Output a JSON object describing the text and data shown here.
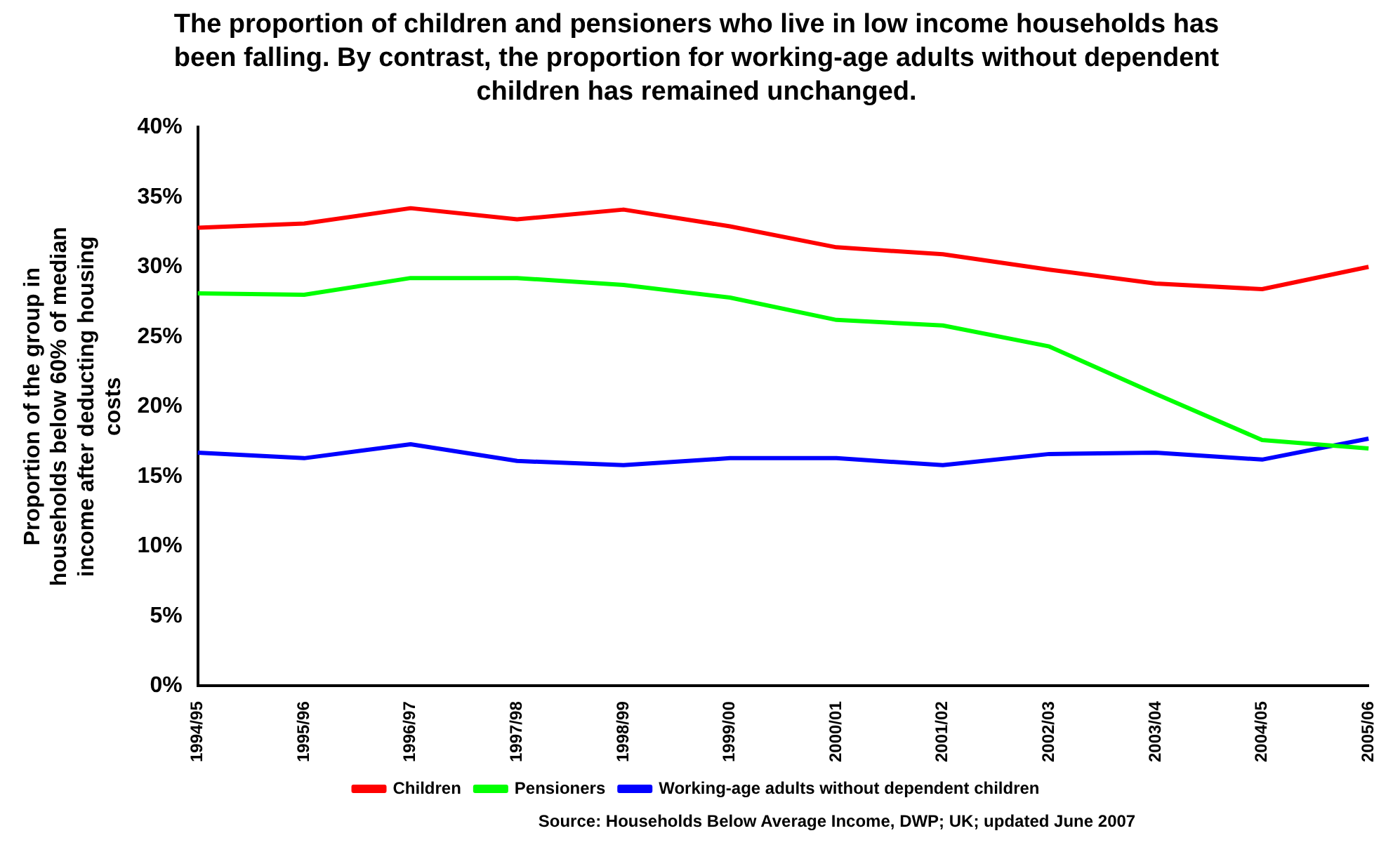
{
  "chart_data": {
    "type": "line",
    "title": "The proportion of children and pensioners who live in low income households has been falling.  By contrast, the proportion for working-age adults without dependent children has remained unchanged.",
    "ylabel": "Proportion of the group in households below 60% of median income after deducting housing costs",
    "annotations": [
      "Source: Households Below Average Income, DWP; UK; updated June 2007"
    ],
    "categories": [
      "1994/95",
      "1995/96",
      "1996/97",
      "1997/98",
      "1998/99",
      "1999/00",
      "2000/01",
      "2001/02",
      "2002/03",
      "2003/04",
      "2004/05",
      "2005/06"
    ],
    "series": [
      {
        "name": "Children",
        "color": "#ff0000",
        "values": [
          32.8,
          33.1,
          34.2,
          33.4,
          34.1,
          32.9,
          31.4,
          30.9,
          29.8,
          28.8,
          28.4,
          30.0
        ]
      },
      {
        "name": "Pensioners",
        "color": "#00ff00",
        "values": [
          28.1,
          28.0,
          29.2,
          29.2,
          28.7,
          27.8,
          26.2,
          25.8,
          24.3,
          20.9,
          17.6,
          17.0
        ]
      },
      {
        "name": "Working-age adults without dependent children",
        "color": "#0000ff",
        "values": [
          16.7,
          16.3,
          17.3,
          16.1,
          15.8,
          16.3,
          16.3,
          15.8,
          16.6,
          16.7,
          16.2,
          17.7
        ]
      }
    ],
    "ylim": [
      0,
      40
    ],
    "yticks": [
      {
        "value": 0,
        "label": "0%"
      },
      {
        "value": 5,
        "label": "5%"
      },
      {
        "value": 10,
        "label": "10%"
      },
      {
        "value": 15,
        "label": "15%"
      },
      {
        "value": 20,
        "label": "20%"
      },
      {
        "value": 25,
        "label": "25%"
      },
      {
        "value": 30,
        "label": "30%"
      },
      {
        "value": 35,
        "label": "35%"
      },
      {
        "value": 40,
        "label": "40%"
      }
    ],
    "grid": false,
    "legend": "bottom",
    "marker": "none",
    "line_style": "solid"
  }
}
